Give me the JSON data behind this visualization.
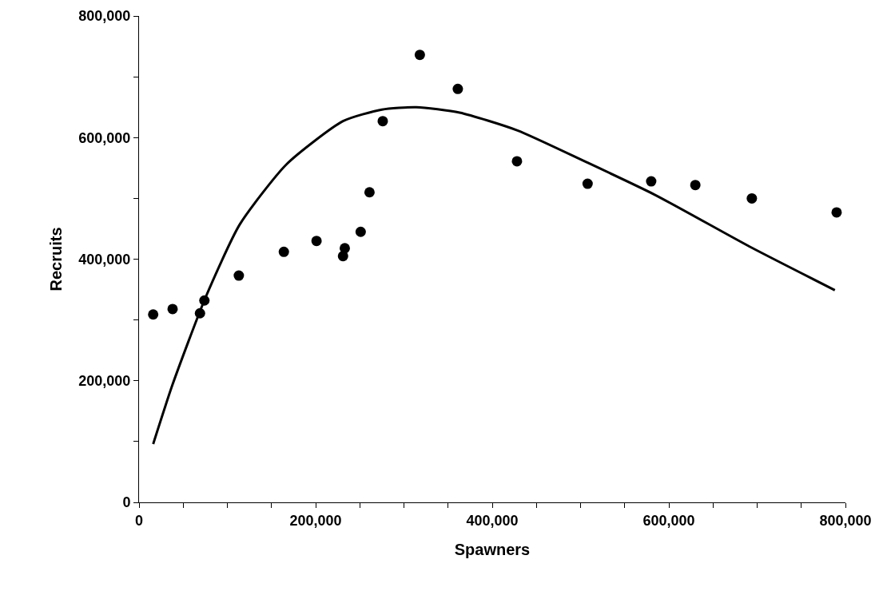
{
  "chart_data": {
    "type": "scatter",
    "xlabel": "Spawners",
    "ylabel": "Recruits",
    "xlim": [
      0,
      800000
    ],
    "ylim": [
      0,
      800000
    ],
    "xticks": [
      {
        "value": 0,
        "label": "0"
      },
      {
        "value": 50000,
        "label": null
      },
      {
        "value": 100000,
        "label": null
      },
      {
        "value": 150000,
        "label": null
      },
      {
        "value": 200000,
        "label": "200,000"
      },
      {
        "value": 250000,
        "label": null
      },
      {
        "value": 300000,
        "label": null
      },
      {
        "value": 350000,
        "label": null
      },
      {
        "value": 400000,
        "label": "400,000"
      },
      {
        "value": 450000,
        "label": null
      },
      {
        "value": 500000,
        "label": null
      },
      {
        "value": 550000,
        "label": null
      },
      {
        "value": 600000,
        "label": "600,000"
      },
      {
        "value": 650000,
        "label": null
      },
      {
        "value": 700000,
        "label": null
      },
      {
        "value": 750000,
        "label": null
      },
      {
        "value": 800000,
        "label": "800,000"
      }
    ],
    "yticks": [
      {
        "value": 0,
        "label": "0"
      },
      {
        "value": 100000,
        "label": null
      },
      {
        "value": 200000,
        "label": "200,000"
      },
      {
        "value": 300000,
        "label": null
      },
      {
        "value": 400000,
        "label": "400,000"
      },
      {
        "value": 500000,
        "label": null
      },
      {
        "value": 600000,
        "label": "600,000"
      },
      {
        "value": 700000,
        "label": null
      },
      {
        "value": 800000,
        "label": "800,000"
      }
    ],
    "grid": false,
    "legend": false,
    "series": [
      {
        "color": "#000000",
        "marker": "circle",
        "x": [
          16000,
          38000,
          69000,
          74000,
          113000,
          164000,
          201000,
          231000,
          233000,
          251000,
          261000,
          276000,
          318000,
          361000,
          428000,
          508000,
          580000,
          630000,
          694000,
          790000
        ],
        "values": [
          309000,
          318000,
          311000,
          332000,
          373000,
          412000,
          430000,
          405000,
          418000,
          445000,
          510000,
          627000,
          736000,
          680000,
          561000,
          524000,
          528000,
          522000,
          500000,
          477000
        ]
      },
      {
        "type": "line",
        "color": "#000000",
        "marker": "none",
        "line_style": "solid",
        "x": [
          16000,
          38000,
          75000,
          114000,
          167000,
          231000,
          275000,
          314000,
          363000,
          428000,
          506000,
          584000,
          691000,
          788000
        ],
        "values": [
          96000,
          194000,
          336000,
          457000,
          556000,
          627000,
          646000,
          650000,
          641000,
          612000,
          560000,
          506000,
          421000,
          349000
        ]
      }
    ]
  }
}
